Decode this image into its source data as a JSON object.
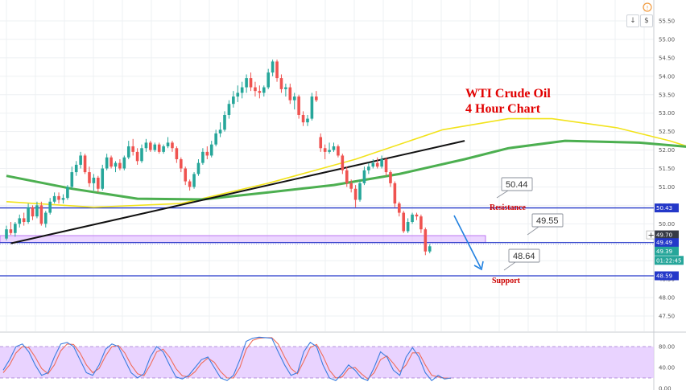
{
  "chart_data": {
    "type": "candlestick",
    "title_line1": "WTI Crude Oil",
    "title_line2": "4 Hour Chart",
    "price_axis": {
      "min": 46.75,
      "max": 55.5,
      "ticks": [
        "55.50",
        "55.00",
        "54.50",
        "54.00",
        "53.50",
        "53.00",
        "52.50",
        "52.00",
        "51.50",
        "51.00",
        "50.50",
        "50.00",
        "49.50",
        "49.00",
        "48.50",
        "48.00",
        "47.50"
      ]
    },
    "levels": {
      "resistance": {
        "value": 50.43,
        "badge": "50.43",
        "label": "Resistance",
        "callout": "50.44"
      },
      "mid": {
        "value": 49.49,
        "badge": "49.49",
        "callout": "49.55"
      },
      "support": {
        "value": 48.59,
        "badge": "48.59",
        "label": "Support",
        "callout": "48.64"
      },
      "crosshair": {
        "value": 49.7,
        "badge": "49.70"
      },
      "last_price": {
        "value": 49.39,
        "badge": "49.39",
        "countdown": "01:22:45"
      }
    },
    "zone": {
      "top": 49.68,
      "bottom": 49.49
    },
    "trendline": {
      "from": [
        1,
        49.47
      ],
      "to": [
        105,
        52.25
      ]
    },
    "candles": [
      [
        49.6,
        49.95,
        49.55,
        49.85
      ],
      [
        49.85,
        50.05,
        49.7,
        49.75
      ],
      [
        49.75,
        50.05,
        49.65,
        50.0
      ],
      [
        50.0,
        50.25,
        49.9,
        50.15
      ],
      [
        50.15,
        50.3,
        49.95,
        50.05
      ],
      [
        50.05,
        50.55,
        50.0,
        50.45
      ],
      [
        50.45,
        50.5,
        50.1,
        50.2
      ],
      [
        50.2,
        50.6,
        50.15,
        50.5
      ],
      [
        50.5,
        50.6,
        49.95,
        50.0
      ],
      [
        50.0,
        50.35,
        49.9,
        50.3
      ],
      [
        50.3,
        50.7,
        50.25,
        50.6
      ],
      [
        50.6,
        50.85,
        50.55,
        50.75
      ],
      [
        50.75,
        50.85,
        50.55,
        50.65
      ],
      [
        50.65,
        50.8,
        50.55,
        50.7
      ],
      [
        50.7,
        51.05,
        50.65,
        51.0
      ],
      [
        51.0,
        51.55,
        50.95,
        51.4
      ],
      [
        51.4,
        51.7,
        51.3,
        51.6
      ],
      [
        51.6,
        51.95,
        51.5,
        51.85
      ],
      [
        51.85,
        51.9,
        51.35,
        51.4
      ],
      [
        51.4,
        51.55,
        51.0,
        51.1
      ],
      [
        51.1,
        51.35,
        50.9,
        51.25
      ],
      [
        51.25,
        51.3,
        50.85,
        50.95
      ],
      [
        50.95,
        51.6,
        50.9,
        51.5
      ],
      [
        51.5,
        51.9,
        51.45,
        51.8
      ],
      [
        51.8,
        51.85,
        51.5,
        51.55
      ],
      [
        51.55,
        51.7,
        51.4,
        51.65
      ],
      [
        51.65,
        51.75,
        51.45,
        51.5
      ],
      [
        51.5,
        51.85,
        51.45,
        51.8
      ],
      [
        51.8,
        52.25,
        51.75,
        52.1
      ],
      [
        52.1,
        52.3,
        51.85,
        51.95
      ],
      [
        51.95,
        52.05,
        51.6,
        51.7
      ],
      [
        51.7,
        52.15,
        51.65,
        52.05
      ],
      [
        52.05,
        52.3,
        51.95,
        52.2
      ],
      [
        52.2,
        52.25,
        51.95,
        52.0
      ],
      [
        52.0,
        52.2,
        51.95,
        52.15
      ],
      [
        52.15,
        52.2,
        51.9,
        51.95
      ],
      [
        51.95,
        52.15,
        51.9,
        52.1
      ],
      [
        52.1,
        52.35,
        52.05,
        52.2
      ],
      [
        52.2,
        52.25,
        51.95,
        52.05
      ],
      [
        52.05,
        52.1,
        51.65,
        51.75
      ],
      [
        51.75,
        51.8,
        51.4,
        51.5
      ],
      [
        51.5,
        51.55,
        51.05,
        51.15
      ],
      [
        51.15,
        51.2,
        50.9,
        51.0
      ],
      [
        51.0,
        51.4,
        50.95,
        51.35
      ],
      [
        51.35,
        51.75,
        51.3,
        51.65
      ],
      [
        51.65,
        52.05,
        51.6,
        51.95
      ],
      [
        51.95,
        52.1,
        51.75,
        51.85
      ],
      [
        51.85,
        52.25,
        51.8,
        52.15
      ],
      [
        52.15,
        52.55,
        52.1,
        52.45
      ],
      [
        52.45,
        52.75,
        52.35,
        52.55
      ],
      [
        52.55,
        53.05,
        52.5,
        52.95
      ],
      [
        52.95,
        53.35,
        52.85,
        53.25
      ],
      [
        53.25,
        53.6,
        53.15,
        53.45
      ],
      [
        53.45,
        53.75,
        53.3,
        53.55
      ],
      [
        53.55,
        53.85,
        53.4,
        53.7
      ],
      [
        53.7,
        54.05,
        53.55,
        53.95
      ],
      [
        53.95,
        54.1,
        53.6,
        53.7
      ],
      [
        53.7,
        53.85,
        53.45,
        53.6
      ],
      [
        53.6,
        53.75,
        53.4,
        53.55
      ],
      [
        53.55,
        53.75,
        53.45,
        53.7
      ],
      [
        53.7,
        54.2,
        53.65,
        54.1
      ],
      [
        54.1,
        54.45,
        54.0,
        54.4
      ],
      [
        54.4,
        54.45,
        53.85,
        53.95
      ],
      [
        53.95,
        54.05,
        53.55,
        53.65
      ],
      [
        53.65,
        53.8,
        53.45,
        53.7
      ],
      [
        53.7,
        53.8,
        53.25,
        53.35
      ],
      [
        53.35,
        53.55,
        53.1,
        53.45
      ],
      [
        53.45,
        53.5,
        52.85,
        52.95
      ],
      [
        52.95,
        53.05,
        52.65,
        52.75
      ],
      [
        52.75,
        52.95,
        52.65,
        52.85
      ],
      [
        52.85,
        53.55,
        52.8,
        53.45
      ],
      [
        53.45,
        53.6,
        53.3,
        53.35
      ],
      [
        52.35,
        52.45,
        51.95,
        52.05
      ],
      [
        52.05,
        52.15,
        51.75,
        51.95
      ],
      [
        51.95,
        52.2,
        51.9,
        52.0
      ],
      [
        52.0,
        52.2,
        51.95,
        52.1
      ],
      [
        52.1,
        52.15,
        51.8,
        51.85
      ],
      [
        51.85,
        51.9,
        51.35,
        51.45
      ],
      [
        51.45,
        51.55,
        51.0,
        51.1
      ],
      [
        51.1,
        51.2,
        50.85,
        50.95
      ],
      [
        50.95,
        51.05,
        50.45,
        50.65
      ],
      [
        50.65,
        51.2,
        50.6,
        51.1
      ],
      [
        51.1,
        51.55,
        51.05,
        51.45
      ],
      [
        51.45,
        51.65,
        51.35,
        51.55
      ],
      [
        51.55,
        51.75,
        51.5,
        51.65
      ],
      [
        51.65,
        51.8,
        51.5,
        51.55
      ],
      [
        51.55,
        51.85,
        51.5,
        51.75
      ],
      [
        51.75,
        51.8,
        51.3,
        51.4
      ],
      [
        51.4,
        51.45,
        51.0,
        51.1
      ],
      [
        51.1,
        51.15,
        50.45,
        50.55
      ],
      [
        50.55,
        50.6,
        50.2,
        50.3
      ],
      [
        50.3,
        50.35,
        49.75,
        49.8
      ],
      [
        49.8,
        50.15,
        49.75,
        50.05
      ],
      [
        50.05,
        50.3,
        50.0,
        50.25
      ],
      [
        50.25,
        50.3,
        50.1,
        50.2
      ],
      [
        50.2,
        50.25,
        49.75,
        49.85
      ],
      [
        49.85,
        49.9,
        49.15,
        49.25
      ],
      [
        49.25,
        49.45,
        49.2,
        49.39
      ]
    ],
    "ma_yellow": [
      [
        0,
        50.6
      ],
      [
        20,
        50.45
      ],
      [
        40,
        50.55
      ],
      [
        60,
        51.1
      ],
      [
        80,
        51.75
      ],
      [
        100,
        52.55
      ],
      [
        115,
        52.85
      ],
      [
        125,
        52.85
      ],
      [
        140,
        52.6
      ],
      [
        152,
        52.25
      ],
      [
        160,
        51.95
      ]
    ],
    "ma_green": [
      [
        0,
        51.3
      ],
      [
        15,
        50.95
      ],
      [
        30,
        50.68
      ],
      [
        45,
        50.66
      ],
      [
        60,
        50.85
      ],
      [
        75,
        51.05
      ],
      [
        90,
        51.35
      ],
      [
        105,
        51.75
      ],
      [
        115,
        52.05
      ],
      [
        128,
        52.25
      ],
      [
        145,
        52.2
      ],
      [
        160,
        52.05
      ]
    ],
    "stochastic": {
      "levels": [
        "80.00",
        "40.00",
        "0.00"
      ],
      "upper": 80,
      "lower": 20,
      "k": [
        35,
        55,
        80,
        85,
        70,
        45,
        25,
        30,
        60,
        85,
        88,
        80,
        55,
        30,
        25,
        45,
        75,
        85,
        80,
        55,
        30,
        20,
        28,
        60,
        80,
        70,
        45,
        22,
        18,
        25,
        40,
        55,
        60,
        40,
        20,
        15,
        25,
        55,
        90,
        96,
        98,
        97,
        96,
        70,
        45,
        25,
        30,
        70,
        88,
        80,
        45,
        20,
        15,
        28,
        45,
        35,
        20,
        15,
        40,
        70,
        60,
        35,
        25,
        60,
        78,
        60,
        30,
        15,
        25,
        18,
        20
      ],
      "d": [
        30,
        45,
        68,
        80,
        78,
        60,
        38,
        28,
        45,
        72,
        85,
        84,
        68,
        45,
        30,
        38,
        62,
        80,
        82,
        68,
        45,
        28,
        24,
        45,
        70,
        75,
        60,
        38,
        24,
        22,
        32,
        48,
        58,
        50,
        32,
        20,
        20,
        40,
        75,
        92,
        96,
        97,
        97,
        85,
        60,
        38,
        28,
        52,
        78,
        84,
        62,
        35,
        20,
        22,
        38,
        40,
        28,
        18,
        30,
        55,
        62,
        48,
        32,
        45,
        68,
        68,
        45,
        25,
        22,
        20,
        19
      ]
    }
  },
  "ui": {
    "info_icon": "info-icon",
    "down_button": "↓",
    "dollar_button": "$"
  }
}
